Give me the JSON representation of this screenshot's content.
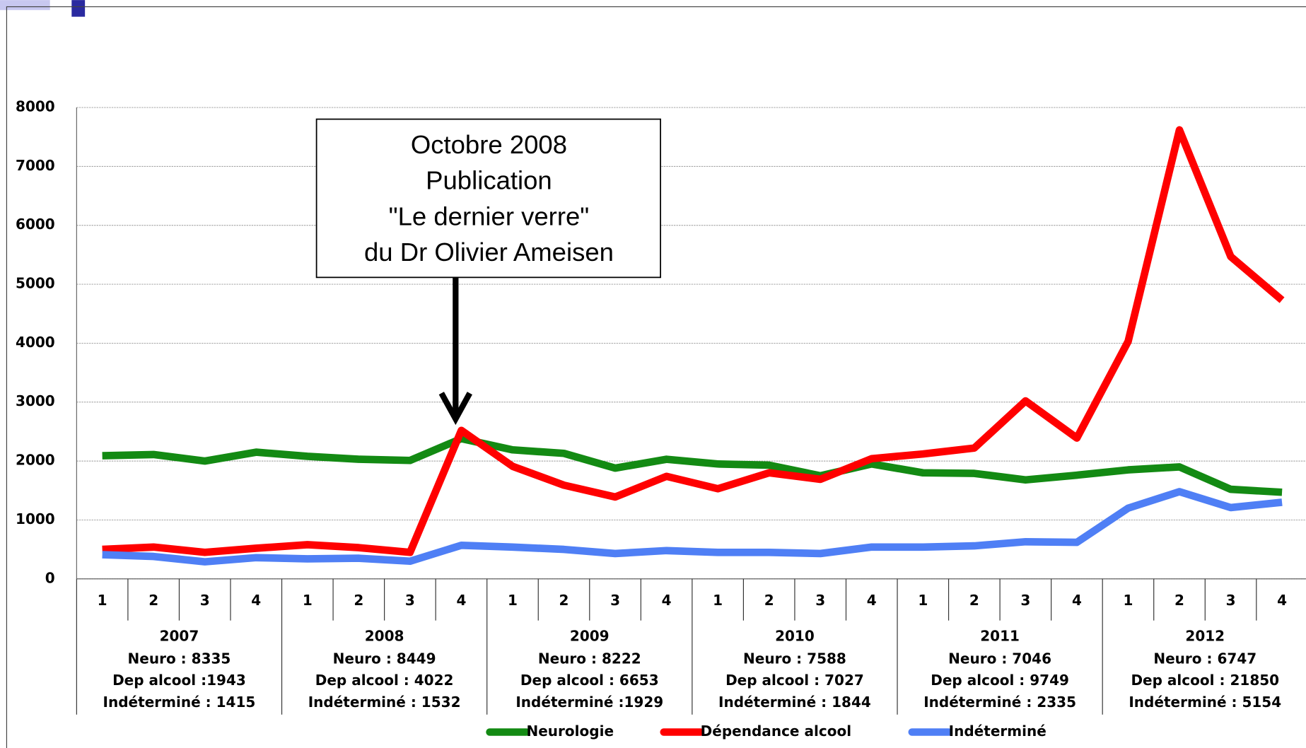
{
  "chart_data": {
    "type": "line",
    "categories": [
      "1",
      "2",
      "3",
      "4",
      "1",
      "2",
      "3",
      "4",
      "1",
      "2",
      "3",
      "4",
      "1",
      "2",
      "3",
      "4",
      "1",
      "2",
      "3",
      "4",
      "1",
      "2",
      "3",
      "4"
    ],
    "groups": [
      {
        "year": "2007",
        "lines": [
          "Neuro : 8335",
          "Dep alcool :1943",
          "Indéterminé : 1415"
        ]
      },
      {
        "year": "2008",
        "lines": [
          "Neuro : 8449",
          "Dep alcool : 4022",
          "Indéterminé : 1532"
        ]
      },
      {
        "year": "2009",
        "lines": [
          "Neuro : 8222",
          "Dep alcool : 6653",
          "Indéterminé :1929"
        ]
      },
      {
        "year": "2010",
        "lines": [
          "Neuro : 7588",
          "Dep alcool : 7027",
          "Indéterminé : 1844"
        ]
      },
      {
        "year": "2011",
        "lines": [
          "Neuro : 7046",
          "Dep alcool : 9749",
          "Indéterminé : 2335"
        ]
      },
      {
        "year": "2012",
        "lines": [
          "Neuro : 6747",
          "Dep alcool : 21850",
          "Indéterminé : 5154"
        ]
      }
    ],
    "series": [
      {
        "name": "Neurologie",
        "color": "#138a13",
        "values": [
          2090,
          2110,
          2000,
          2150,
          2080,
          2030,
          2010,
          2380,
          2190,
          2130,
          1880,
          2030,
          1950,
          1930,
          1750,
          1950,
          1800,
          1790,
          1680,
          1760,
          1850,
          1900,
          1520,
          1470
        ]
      },
      {
        "name": "Dépendance alcool",
        "color": "#ff0000",
        "values": [
          500,
          540,
          450,
          520,
          580,
          530,
          450,
          2520,
          1910,
          1590,
          1390,
          1740,
          1530,
          1800,
          1690,
          2040,
          2120,
          2220,
          3020,
          2390,
          4030,
          7620,
          5470,
          4730
        ]
      },
      {
        "name": "Indéterminé",
        "color": "#4f7ff5",
        "values": [
          410,
          380,
          290,
          360,
          340,
          350,
          300,
          570,
          540,
          500,
          430,
          480,
          450,
          450,
          430,
          540,
          540,
          560,
          630,
          620,
          1200,
          1480,
          1210,
          1300
        ]
      }
    ],
    "annotation": {
      "lines": [
        "Octobre 2008",
        "Publication",
        "\"Le dernier verre\"",
        "du Dr Olivier Ameisen"
      ]
    },
    "ylim": [
      0,
      8000
    ],
    "yticks": [
      0,
      1000,
      2000,
      3000,
      4000,
      5000,
      6000,
      7000,
      8000
    ],
    "grid": true
  }
}
